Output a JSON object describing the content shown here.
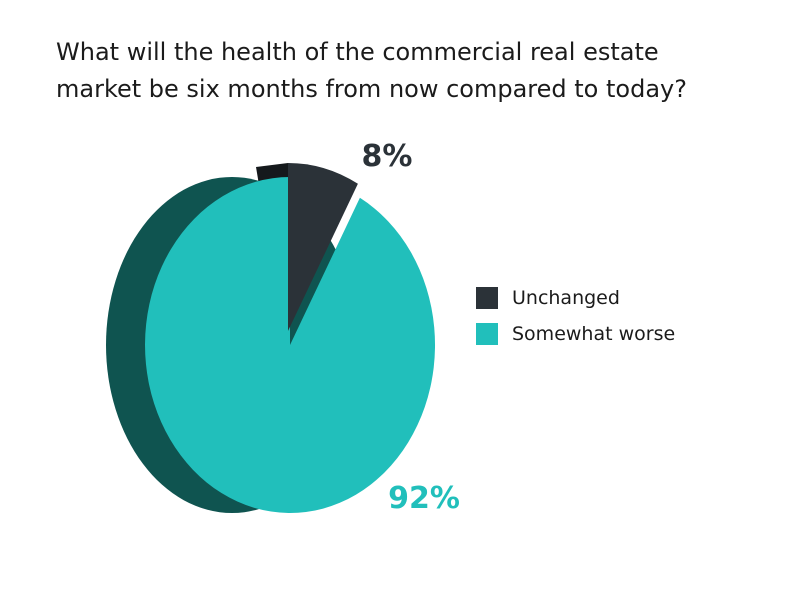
{
  "chart_data": {
    "type": "pie",
    "title_lines": [
      "What will the health of the commercial real estate",
      "market be six months from now compared to today?"
    ],
    "slices": [
      {
        "label": "Unchanged",
        "value": 8,
        "value_label": "8%",
        "color": "#2b3238",
        "side_color": "#15191c"
      },
      {
        "label": "Somewhat worse",
        "value": 92,
        "value_label": "92%",
        "color": "#21bfbb",
        "side_color": "#0f5450"
      }
    ],
    "legend_position": "right",
    "style": "3d-tilted"
  }
}
